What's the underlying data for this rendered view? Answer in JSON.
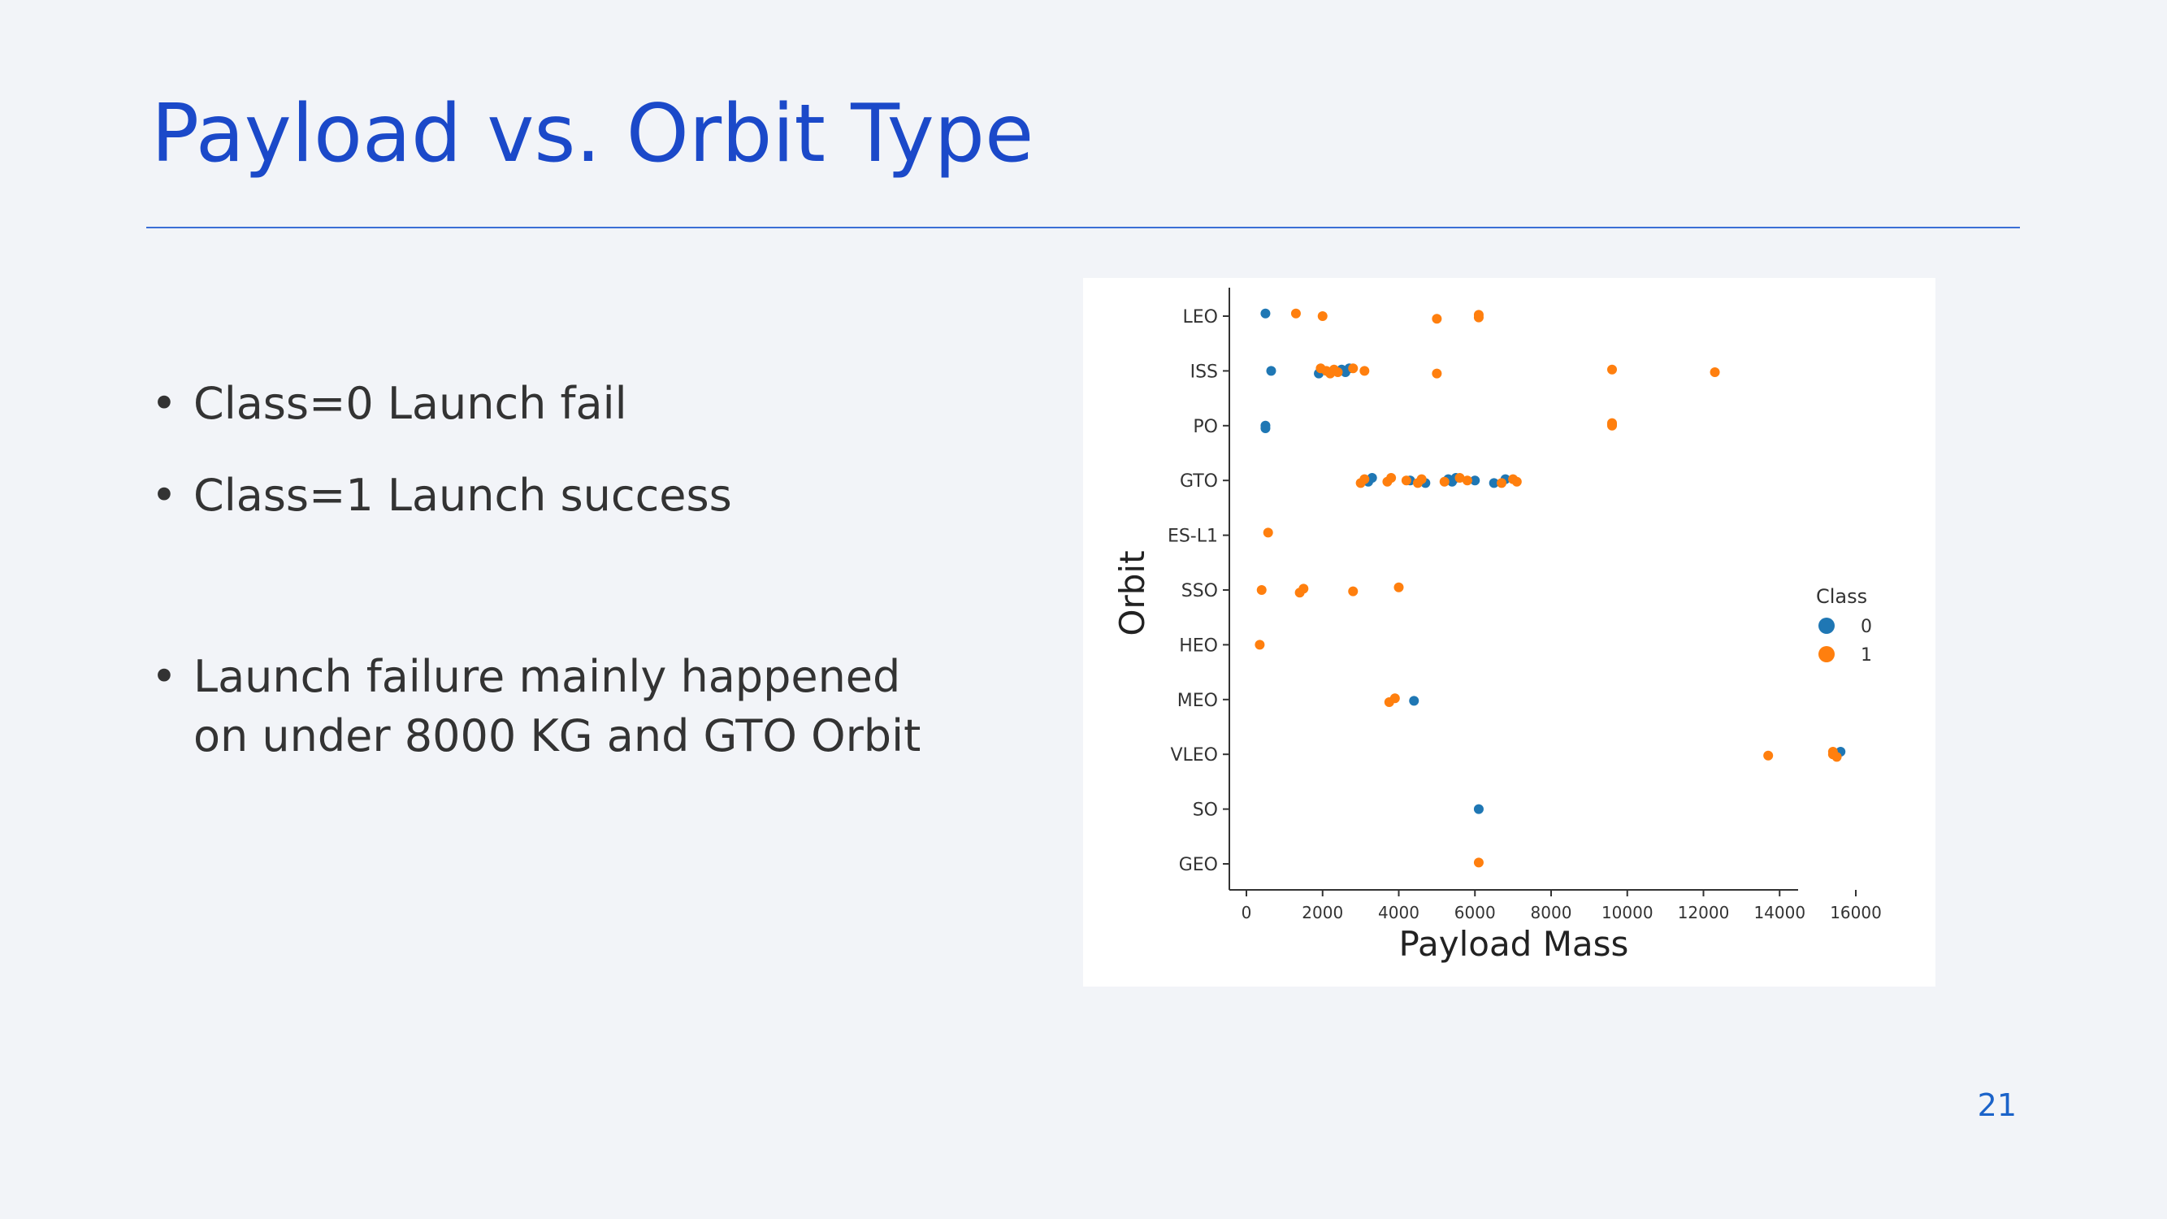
{
  "slide": {
    "title": "Payload vs. Orbit Type",
    "page_number": "21",
    "bullets": [
      "Class=0 Launch fail",
      "Class=1 Launch success",
      "Launch failure mainly happened on under 8000 KG and GTO Orbit"
    ]
  },
  "chart_data": {
    "type": "scatter",
    "title": "",
    "xlabel": "Payload Mass",
    "ylabel": "Orbit",
    "xlim": [
      -400,
      16800
    ],
    "x_ticks": [
      0,
      2000,
      4000,
      6000,
      8000,
      10000,
      12000,
      14000,
      16000
    ],
    "categories": [
      "LEO",
      "ISS",
      "PO",
      "GTO",
      "ES-L1",
      "SSO",
      "HEO",
      "MEO",
      "VLEO",
      "SO",
      "GEO"
    ],
    "legend": {
      "title": "Class",
      "placement": "right",
      "entries": [
        "0",
        "1"
      ]
    },
    "colors": {
      "0": "#1f77b4",
      "1": "#ff7f0e"
    },
    "series": [
      {
        "name": "0",
        "points": [
          {
            "x": 500,
            "orbit": "LEO"
          },
          {
            "x": 650,
            "orbit": "ISS"
          },
          {
            "x": 1900,
            "orbit": "ISS"
          },
          {
            "x": 2500,
            "orbit": "ISS"
          },
          {
            "x": 2600,
            "orbit": "ISS"
          },
          {
            "x": 2700,
            "orbit": "ISS"
          },
          {
            "x": 500,
            "orbit": "PO"
          },
          {
            "x": 500,
            "orbit": "PO"
          },
          {
            "x": 9600,
            "orbit": "PO"
          },
          {
            "x": 3200,
            "orbit": "GTO"
          },
          {
            "x": 3300,
            "orbit": "GTO"
          },
          {
            "x": 4300,
            "orbit": "GTO"
          },
          {
            "x": 4700,
            "orbit": "GTO"
          },
          {
            "x": 5300,
            "orbit": "GTO"
          },
          {
            "x": 5400,
            "orbit": "GTO"
          },
          {
            "x": 5500,
            "orbit": "GTO"
          },
          {
            "x": 6000,
            "orbit": "GTO"
          },
          {
            "x": 6500,
            "orbit": "GTO"
          },
          {
            "x": 6800,
            "orbit": "GTO"
          },
          {
            "x": 4400,
            "orbit": "MEO"
          },
          {
            "x": 15600,
            "orbit": "VLEO"
          },
          {
            "x": 6100,
            "orbit": "SO"
          }
        ]
      },
      {
        "name": "1",
        "points": [
          {
            "x": 1300,
            "orbit": "LEO"
          },
          {
            "x": 2000,
            "orbit": "LEO"
          },
          {
            "x": 5000,
            "orbit": "LEO"
          },
          {
            "x": 6100,
            "orbit": "LEO"
          },
          {
            "x": 6100,
            "orbit": "LEO"
          },
          {
            "x": 1950,
            "orbit": "ISS"
          },
          {
            "x": 2100,
            "orbit": "ISS"
          },
          {
            "x": 2200,
            "orbit": "ISS"
          },
          {
            "x": 2300,
            "orbit": "ISS"
          },
          {
            "x": 2400,
            "orbit": "ISS"
          },
          {
            "x": 2800,
            "orbit": "ISS"
          },
          {
            "x": 3100,
            "orbit": "ISS"
          },
          {
            "x": 5000,
            "orbit": "ISS"
          },
          {
            "x": 9600,
            "orbit": "ISS"
          },
          {
            "x": 12300,
            "orbit": "ISS"
          },
          {
            "x": 9600,
            "orbit": "PO"
          },
          {
            "x": 9600,
            "orbit": "PO"
          },
          {
            "x": 3000,
            "orbit": "GTO"
          },
          {
            "x": 3100,
            "orbit": "GTO"
          },
          {
            "x": 3700,
            "orbit": "GTO"
          },
          {
            "x": 3800,
            "orbit": "GTO"
          },
          {
            "x": 4200,
            "orbit": "GTO"
          },
          {
            "x": 4500,
            "orbit": "GTO"
          },
          {
            "x": 4600,
            "orbit": "GTO"
          },
          {
            "x": 5200,
            "orbit": "GTO"
          },
          {
            "x": 5600,
            "orbit": "GTO"
          },
          {
            "x": 5800,
            "orbit": "GTO"
          },
          {
            "x": 6700,
            "orbit": "GTO"
          },
          {
            "x": 7000,
            "orbit": "GTO"
          },
          {
            "x": 7100,
            "orbit": "GTO"
          },
          {
            "x": 570,
            "orbit": "ES-L1"
          },
          {
            "x": 400,
            "orbit": "SSO"
          },
          {
            "x": 1400,
            "orbit": "SSO"
          },
          {
            "x": 1500,
            "orbit": "SSO"
          },
          {
            "x": 2800,
            "orbit": "SSO"
          },
          {
            "x": 4000,
            "orbit": "SSO"
          },
          {
            "x": 350,
            "orbit": "HEO"
          },
          {
            "x": 3750,
            "orbit": "MEO"
          },
          {
            "x": 3900,
            "orbit": "MEO"
          },
          {
            "x": 13700,
            "orbit": "VLEO"
          },
          {
            "x": 15400,
            "orbit": "VLEO"
          },
          {
            "x": 15400,
            "orbit": "VLEO"
          },
          {
            "x": 15500,
            "orbit": "VLEO"
          },
          {
            "x": 6100,
            "orbit": "GEO"
          }
        ]
      }
    ]
  }
}
